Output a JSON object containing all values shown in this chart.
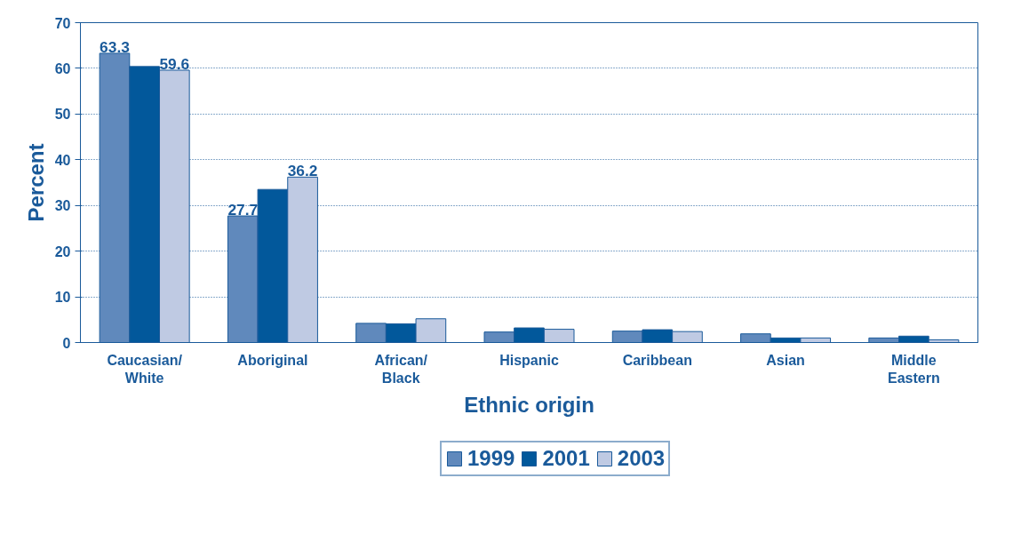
{
  "chart_data": {
    "type": "bar",
    "xlabel": "Ethnic origin",
    "ylabel": "Percent",
    "categories": [
      "Caucasian/White",
      "Aboriginal",
      "African/Black",
      "Hispanic",
      "Caribbean",
      "Asian",
      "Middle Eastern"
    ],
    "series": [
      {
        "name": "1999",
        "color": "#6089bc",
        "values": [
          63.3,
          27.7,
          4.2,
          2.3,
          2.5,
          1.9,
          1.0
        ],
        "value_labels": [
          "63.3",
          "27.7",
          null,
          null,
          null,
          null,
          null
        ]
      },
      {
        "name": "2001",
        "color": "#02589b",
        "values": [
          60.4,
          33.5,
          4.1,
          3.2,
          2.8,
          1.0,
          1.4
        ],
        "value_labels": [
          null,
          null,
          null,
          null,
          null,
          null,
          null
        ]
      },
      {
        "name": "2003",
        "color": "#bfcae3",
        "values": [
          59.6,
          36.2,
          5.2,
          2.9,
          2.4,
          1.0,
          0.6
        ],
        "value_labels": [
          "59.6",
          "36.2",
          null,
          null,
          null,
          null,
          null
        ]
      }
    ],
    "ylim": [
      0,
      70
    ],
    "yticks": [
      0,
      10,
      20,
      30,
      40,
      50,
      60,
      70
    ],
    "grid": "y",
    "legend": "bottom"
  }
}
